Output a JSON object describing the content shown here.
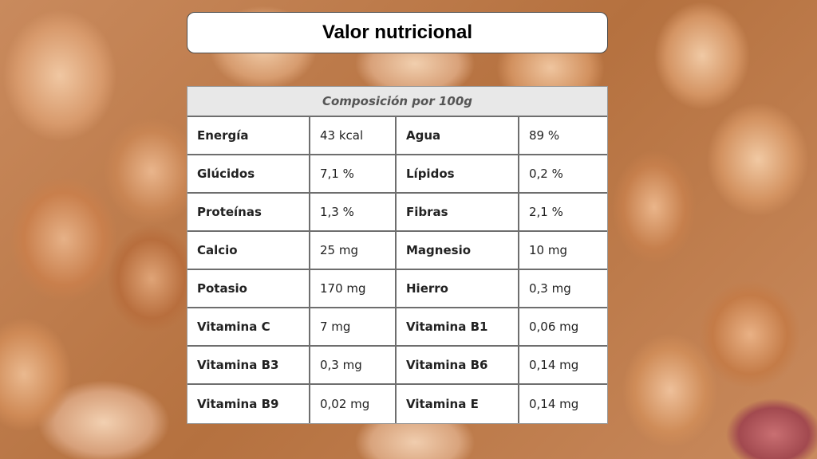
{
  "slide": {
    "title": "Valor nutricional"
  },
  "table": {
    "header": "Composición por 100g",
    "rows": [
      {
        "n1": "Energía",
        "v1": "43 kcal",
        "n2": "Agua",
        "v2": "89 %"
      },
      {
        "n1": "Glúcidos",
        "v1": "7,1 %",
        "n2": "Lípidos",
        "v2": "0,2 %"
      },
      {
        "n1": "Proteínas",
        "v1": "1,3 %",
        "n2": "Fibras",
        "v2": "2,1 %"
      },
      {
        "n1": "Calcio",
        "v1": "25 mg",
        "n2": "Magnesio",
        "v2": "10 mg"
      },
      {
        "n1": "Potasio",
        "v1": "170 mg",
        "n2": "Hierro",
        "v2": "0,3 mg"
      },
      {
        "n1": "Vitamina C",
        "v1": "7 mg",
        "n2": "Vitamina B1",
        "v2": "0,06 mg"
      },
      {
        "n1": "Vitamina B3",
        "v1": "0,3 mg",
        "n2": "Vitamina B6",
        "v2": "0,14 mg"
      },
      {
        "n1": "Vitamina B9",
        "v1": "0,02 mg",
        "n2": "Vitamina E",
        "v2": "0,14 mg"
      }
    ]
  }
}
